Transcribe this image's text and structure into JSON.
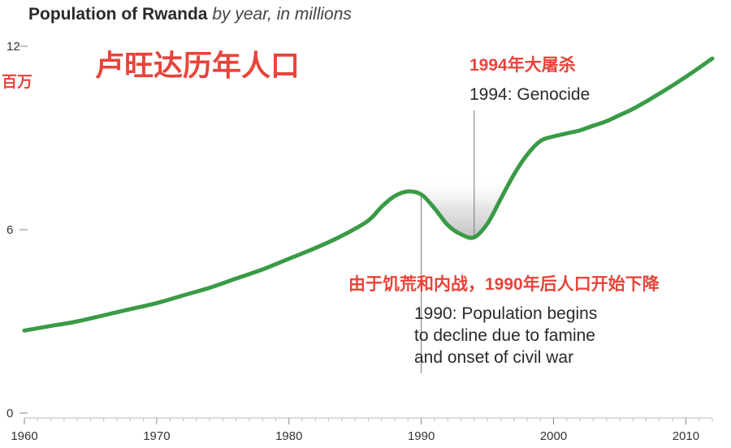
{
  "title": {
    "main": "Population of Rwanda",
    "sub": "by year, in millions"
  },
  "cn_title": "卢旺达历年人口",
  "cn_unit": "百万",
  "annotations": {
    "genocide_cn": "1994年大屠杀",
    "genocide_en": "1994: Genocide",
    "decline_cn": "由于饥荒和内战，1990年后人口开始下降",
    "decline_en_1": "1990: Population begins",
    "decline_en_2": "to decline due to famine",
    "decline_en_3": "and onset of civil war"
  },
  "colors": {
    "line": "#3a9b46",
    "accent_text": "#e8443a",
    "axis": "#bbbbbb",
    "text": "#2a2a2a"
  },
  "chart_data": {
    "type": "line",
    "title": "Population of Rwanda by year, in millions",
    "xlabel": "",
    "ylabel": "百万",
    "xlim": [
      1960,
      2012
    ],
    "ylim": [
      0,
      12
    ],
    "x_ticks": [
      1960,
      1970,
      1980,
      1990,
      2000,
      2010
    ],
    "y_ticks": [
      0,
      6,
      12
    ],
    "grid": false,
    "annotation_years": [
      1990,
      1994
    ],
    "series": [
      {
        "x": [
          1960,
          1962,
          1964,
          1966,
          1968,
          1970,
          1972,
          1974,
          1976,
          1978,
          1980,
          1982,
          1984,
          1986,
          1987,
          1988,
          1989,
          1990,
          1991,
          1992,
          1993,
          1994,
          1995,
          1996,
          1997,
          1998,
          1999,
          2000,
          2001,
          2002,
          2003,
          2004,
          2005,
          2006,
          2008,
          2010,
          2012
        ],
        "values": [
          2.7,
          2.85,
          3.0,
          3.2,
          3.4,
          3.6,
          3.85,
          4.1,
          4.4,
          4.7,
          5.05,
          5.4,
          5.8,
          6.3,
          6.75,
          7.1,
          7.25,
          7.15,
          6.7,
          6.15,
          5.85,
          5.75,
          6.2,
          7.0,
          7.8,
          8.45,
          8.9,
          9.05,
          9.15,
          9.25,
          9.4,
          9.55,
          9.75,
          9.95,
          10.45,
          11.0,
          11.6
        ]
      }
    ]
  }
}
